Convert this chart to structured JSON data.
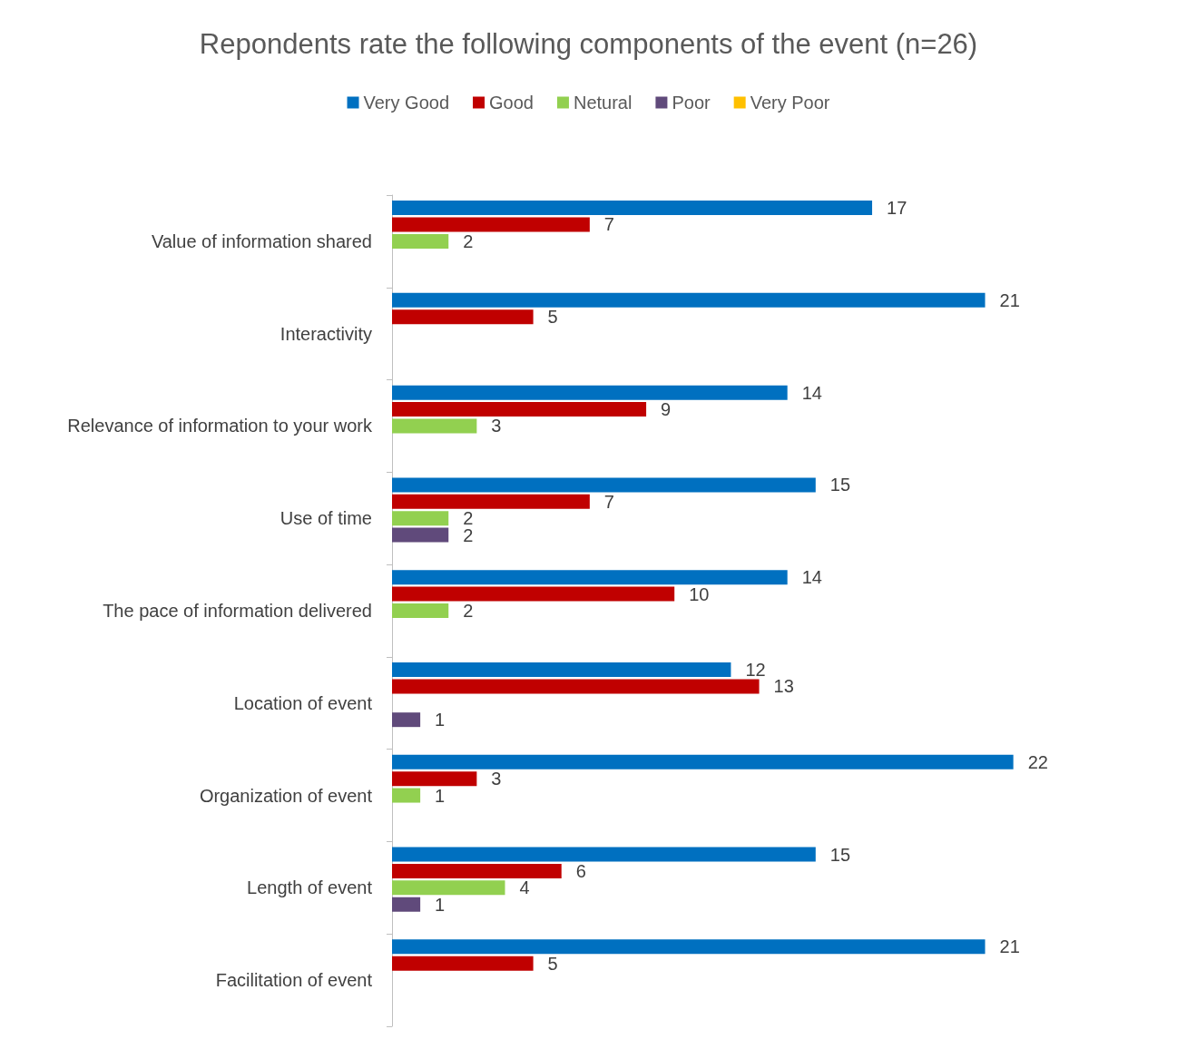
{
  "chart_data": {
    "type": "bar",
    "orientation": "horizontal",
    "title": "Repondents rate the following components of the event (n=26)",
    "categories": [
      "Value of information shared",
      "Interactivity",
      "Relevance of information to your work",
      "Use of time",
      "The pace of information delivered",
      "Location of event",
      "Organization of event",
      "Length of event",
      "Facilitation of event"
    ],
    "series": [
      {
        "name": "Very Good",
        "color": "#0070c0",
        "values": [
          17,
          21,
          14,
          15,
          14,
          12,
          22,
          15,
          21
        ]
      },
      {
        "name": "Good",
        "color": "#c00000",
        "values": [
          7,
          5,
          9,
          7,
          10,
          13,
          3,
          6,
          5
        ]
      },
      {
        "name": "Netural",
        "color": "#92d050",
        "values": [
          2,
          null,
          3,
          2,
          2,
          null,
          1,
          4,
          null
        ]
      },
      {
        "name": "Poor",
        "color": "#604a7b",
        "values": [
          null,
          null,
          null,
          2,
          null,
          1,
          null,
          1,
          null
        ]
      },
      {
        "name": "Very Poor",
        "color": "#ffc000",
        "values": [
          null,
          null,
          null,
          null,
          null,
          null,
          null,
          null,
          null
        ]
      }
    ],
    "data_labels": true,
    "legend": "top",
    "grid": false
  }
}
